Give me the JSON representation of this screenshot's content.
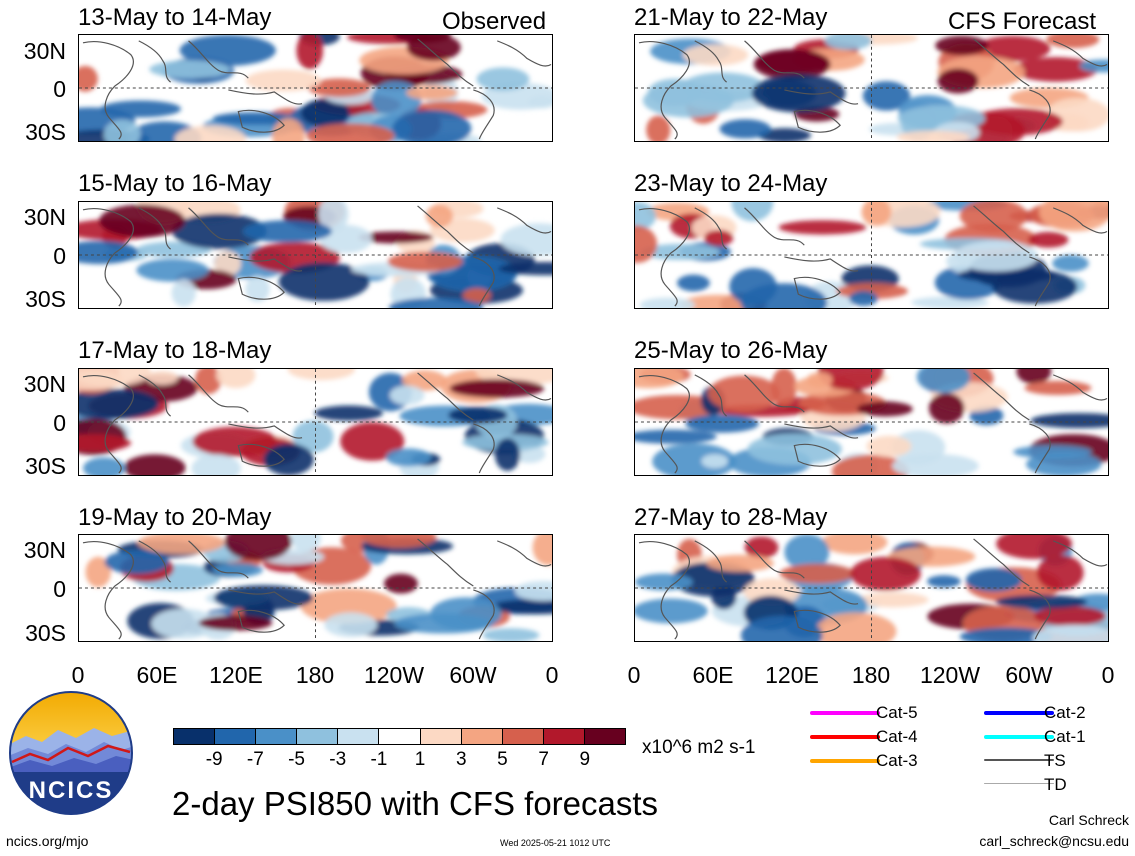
{
  "header": {
    "observed_label": "Observed",
    "forecast_label": "CFS Forecast"
  },
  "panels_left": [
    {
      "title": "13-May to 14-May"
    },
    {
      "title": "15-May to 16-May"
    },
    {
      "title": "17-May to 18-May"
    },
    {
      "title": "19-May to 20-May"
    }
  ],
  "panels_right": [
    {
      "title": "21-May to 22-May"
    },
    {
      "title": "23-May to 24-May"
    },
    {
      "title": "25-May to 26-May"
    },
    {
      "title": "27-May to 28-May"
    }
  ],
  "axes": {
    "lat_ticks": [
      "30N",
      "0",
      "30S"
    ],
    "lon_ticks": [
      "0",
      "60E",
      "120E",
      "180",
      "120W",
      "60W",
      "0"
    ]
  },
  "colorbar": {
    "colors": [
      "#08306b",
      "#2166ac",
      "#4a90c8",
      "#8fc1de",
      "#c9e1f0",
      "#ffffff",
      "#fcd9c4",
      "#f4a582",
      "#d6604d",
      "#b2182b",
      "#67001f"
    ],
    "labels": [
      "-9",
      "-7",
      "-5",
      "-3",
      "-1",
      "1",
      "3",
      "5",
      "7",
      "9"
    ],
    "units": "x10^6 m2 s-1"
  },
  "legend": {
    "items": [
      {
        "label": "Cat-5",
        "color": "#ff00ff"
      },
      {
        "label": "Cat-4",
        "color": "#ff0000"
      },
      {
        "label": "Cat-3",
        "color": "#ffa500"
      },
      {
        "label": "Cat-2",
        "color": "#0000ff"
      },
      {
        "label": "Cat-1",
        "color": "#00ffff"
      },
      {
        "label": "TS",
        "color": "#555555"
      },
      {
        "label": "TD",
        "color": "#aaaaaa"
      }
    ]
  },
  "logo": {
    "text": "NCICS"
  },
  "title": "2-day PSI850 with CFS forecasts",
  "footer": {
    "url": "ncics.org/mjo",
    "timestamp": "Wed 2025-05-21 1012 UTC",
    "author": "Carl Schreck",
    "email": "carl_schreck@ncsu.edu"
  }
}
